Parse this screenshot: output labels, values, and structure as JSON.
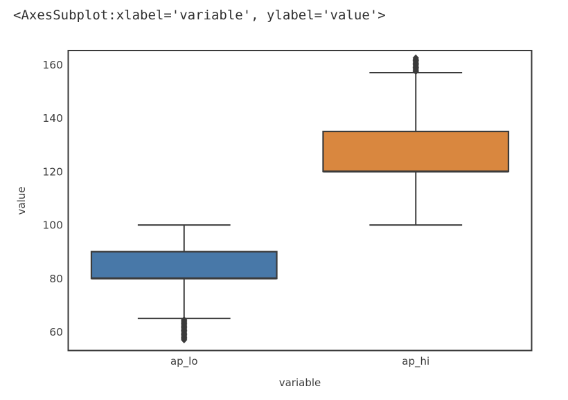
{
  "page": {
    "background": "#ffffff"
  },
  "header": {
    "figure_repr": "<AxesSubplot:xlabel='variable', ylabel='value'>"
  },
  "chart_data": {
    "type": "box",
    "title": "",
    "xlabel": "variable",
    "ylabel": "value",
    "categories": [
      "ap_lo",
      "ap_hi"
    ],
    "yticks": [
      60,
      80,
      100,
      120,
      140,
      160
    ],
    "ylim": [
      53,
      165.3
    ],
    "xlim": [
      -0.5,
      1.5
    ],
    "grid": false,
    "legend_position": "none",
    "box_width": 0.8,
    "cap_width": 0.4,
    "line_color": "#3b3b3b",
    "spine_color": "#3a3a3a",
    "tick_label_color": "#3d3d3d",
    "flier_color": "#3b3b3b",
    "boxes": [
      {
        "category": "ap_lo",
        "fill": "#4878A8",
        "whisker_low": 65,
        "q1": 80,
        "median": 80,
        "q3": 90,
        "whisker_high": 100,
        "fliers": [
          64.5,
          64,
          63.5,
          63,
          62.5,
          62,
          61.5,
          61,
          60.5,
          60,
          59.5,
          59,
          58.5,
          58,
          57.5,
          57
        ]
      },
      {
        "category": "ap_hi",
        "fill": "#D9873F",
        "whisker_low": 100,
        "q1": 120,
        "median": 120,
        "q3": 135,
        "whisker_high": 157,
        "fliers": [
          157.5,
          158,
          158.5,
          159,
          159.5,
          160,
          160.5,
          161,
          161.5,
          162,
          162.5
        ]
      }
    ]
  }
}
